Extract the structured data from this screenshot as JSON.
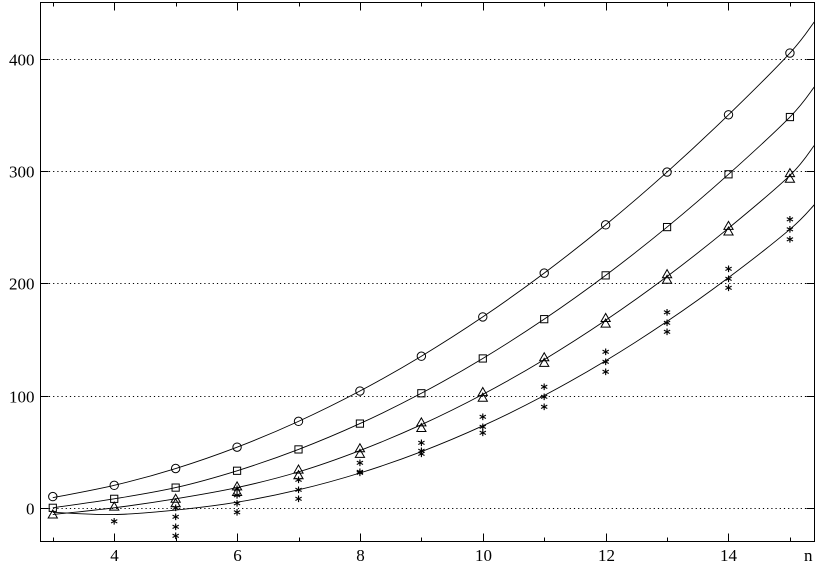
{
  "chart_data": {
    "type": "scatter",
    "title": "",
    "xlabel": "n",
    "ylabel": "",
    "xlim": [
      2.8,
      15.4
    ],
    "ylim": [
      -30,
      450
    ],
    "xticks": [
      4,
      6,
      8,
      10,
      12,
      14
    ],
    "yticks": [
      0,
      100,
      200,
      300,
      400
    ],
    "grid": "horizontal dotted",
    "series": [
      {
        "marker": "circle",
        "x": [
          3,
          4,
          5,
          6,
          7,
          8,
          9,
          10,
          11,
          12,
          13,
          14,
          15
        ],
        "y": [
          [
            10
          ],
          [
            20
          ],
          [
            35
          ],
          [
            54
          ],
          [
            77
          ],
          [
            104
          ],
          [
            135
          ],
          [
            170
          ],
          [
            209
          ],
          [
            252
          ],
          [
            299
          ],
          [
            350
          ],
          [
            405
          ]
        ]
      },
      {
        "marker": "square",
        "x": [
          3,
          4,
          5,
          6,
          7,
          8,
          9,
          10,
          11,
          12,
          13,
          14,
          15
        ],
        "y": [
          [
            0
          ],
          [
            8
          ],
          [
            18
          ],
          [
            33
          ],
          [
            52
          ],
          [
            75
          ],
          [
            102
          ],
          [
            133
          ],
          [
            168
          ],
          [
            207
          ],
          [
            250
          ],
          [
            297
          ],
          [
            348
          ]
        ]
      },
      {
        "marker": "triangle",
        "x": [
          3,
          4,
          5,
          6,
          7,
          8,
          9,
          10,
          11,
          12,
          13,
          14,
          15
        ],
        "y": [
          [
            -6
          ],
          [
            1
          ],
          [
            8,
            4
          ],
          [
            19,
            14
          ],
          [
            34,
            29
          ],
          [
            53,
            48
          ],
          [
            76,
            71
          ],
          [
            103,
            98
          ],
          [
            134,
            129
          ],
          [
            169,
            164
          ],
          [
            208,
            203
          ],
          [
            251,
            246
          ],
          [
            298,
            293
          ]
        ]
      },
      {
        "marker": "asterisk",
        "x": [
          4,
          5,
          6,
          7,
          8,
          9,
          10,
          11,
          12,
          13,
          14,
          15
        ],
        "y": [
          [
            -14
          ],
          [
            -2,
            -10,
            -19,
            -27
          ],
          [
            15,
            9,
            2,
            -6
          ],
          [
            23,
            14,
            6
          ],
          [
            38,
            30,
            29
          ],
          [
            56,
            49,
            46
          ],
          [
            79,
            70,
            65
          ],
          [
            106,
            97,
            88
          ],
          [
            137,
            128,
            119
          ],
          [
            172,
            163,
            155
          ],
          [
            211,
            202,
            194
          ],
          [
            255,
            246,
            237
          ]
        ]
      }
    ],
    "curves": [
      {
        "fit_of": "circle",
        "x_from": 3,
        "x_to": 15.4,
        "points": [
          [
            3,
            9
          ],
          [
            4,
            20
          ],
          [
            5,
            35
          ],
          [
            6,
            54
          ],
          [
            7,
            77
          ],
          [
            8,
            104
          ],
          [
            9,
            135
          ],
          [
            10,
            170
          ],
          [
            11,
            209
          ],
          [
            12,
            252
          ],
          [
            13,
            299
          ],
          [
            14,
            350
          ],
          [
            15,
            405
          ],
          [
            15.4,
            433
          ]
        ]
      },
      {
        "fit_of": "square",
        "x_from": 3,
        "x_to": 15.4,
        "points": [
          [
            3,
            0
          ],
          [
            4,
            8
          ],
          [
            5,
            18
          ],
          [
            6,
            33
          ],
          [
            7,
            52
          ],
          [
            8,
            75
          ],
          [
            9,
            102
          ],
          [
            10,
            133
          ],
          [
            11,
            168
          ],
          [
            12,
            207
          ],
          [
            13,
            250
          ],
          [
            14,
            297
          ],
          [
            15,
            348
          ],
          [
            15.4,
            375
          ]
        ]
      },
      {
        "fit_of": "triangle",
        "x_from": 3,
        "x_to": 15.4,
        "points": [
          [
            3,
            -6
          ],
          [
            4,
            0
          ],
          [
            5,
            8
          ],
          [
            6,
            18
          ],
          [
            7,
            32
          ],
          [
            8,
            51
          ],
          [
            9,
            74
          ],
          [
            10,
            101
          ],
          [
            11,
            132
          ],
          [
            12,
            167
          ],
          [
            13,
            206
          ],
          [
            14,
            249
          ],
          [
            15,
            296
          ],
          [
            15.4,
            323
          ]
        ]
      },
      {
        "fit_of": "asterisk",
        "x_from": 3,
        "x_to": 15.4,
        "points": [
          [
            3,
            -4
          ],
          [
            4,
            -6
          ],
          [
            5,
            -2
          ],
          [
            6,
            5
          ],
          [
            7,
            16
          ],
          [
            8,
            31
          ],
          [
            9,
            50
          ],
          [
            10,
            73
          ],
          [
            11,
            100
          ],
          [
            12,
            131
          ],
          [
            13,
            166
          ],
          [
            14,
            205
          ],
          [
            15,
            248
          ],
          [
            15.4,
            270
          ]
        ]
      }
    ]
  }
}
